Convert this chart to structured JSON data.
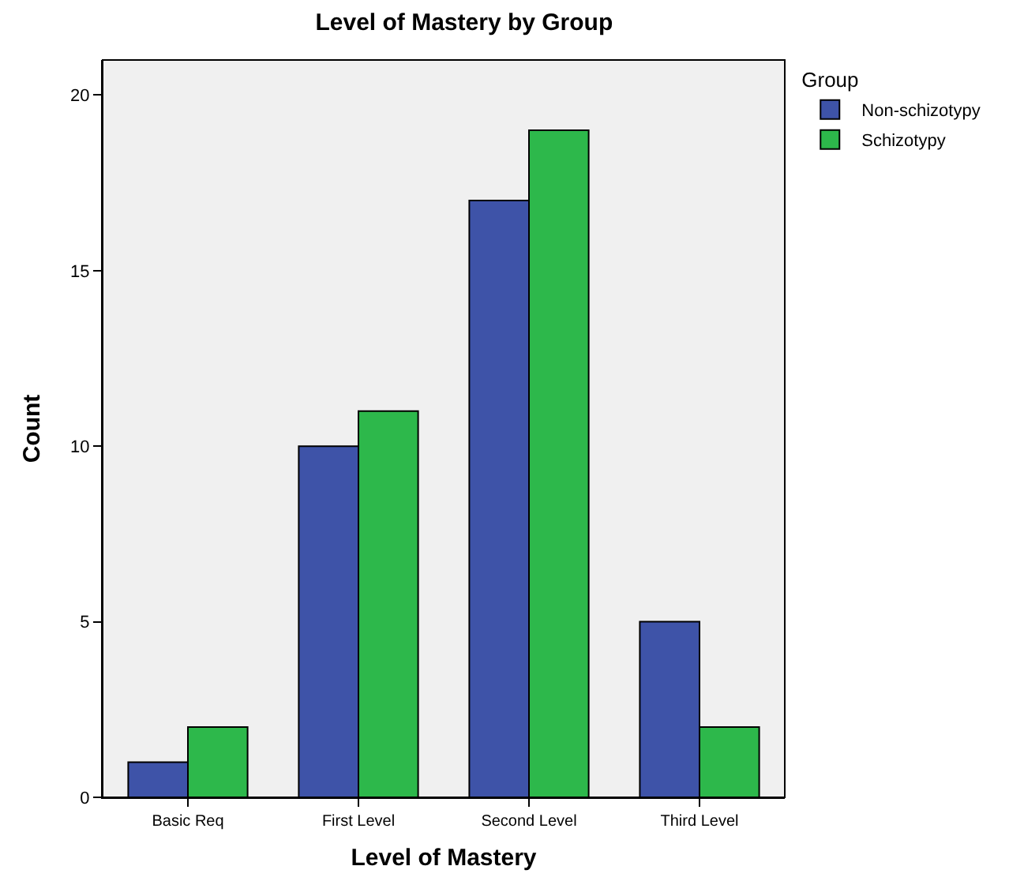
{
  "chart_data": {
    "type": "bar",
    "title": "Level of Mastery by Group",
    "xlabel": "Level of Mastery",
    "ylabel": "Count",
    "legend_title": "Group",
    "categories": [
      "Basic Req",
      "First Level",
      "Second Level",
      "Third Level"
    ],
    "series": [
      {
        "name": "Non-schizotypy",
        "color": "#3e53a8",
        "values": [
          1,
          10,
          17,
          5
        ]
      },
      {
        "name": "Schizotypy",
        "color": "#2db84b",
        "values": [
          2,
          11,
          19,
          2
        ]
      }
    ],
    "ylim": [
      0,
      21
    ],
    "yticks": [
      0,
      5,
      10,
      15,
      20
    ],
    "grid": false,
    "legend": "top right"
  }
}
